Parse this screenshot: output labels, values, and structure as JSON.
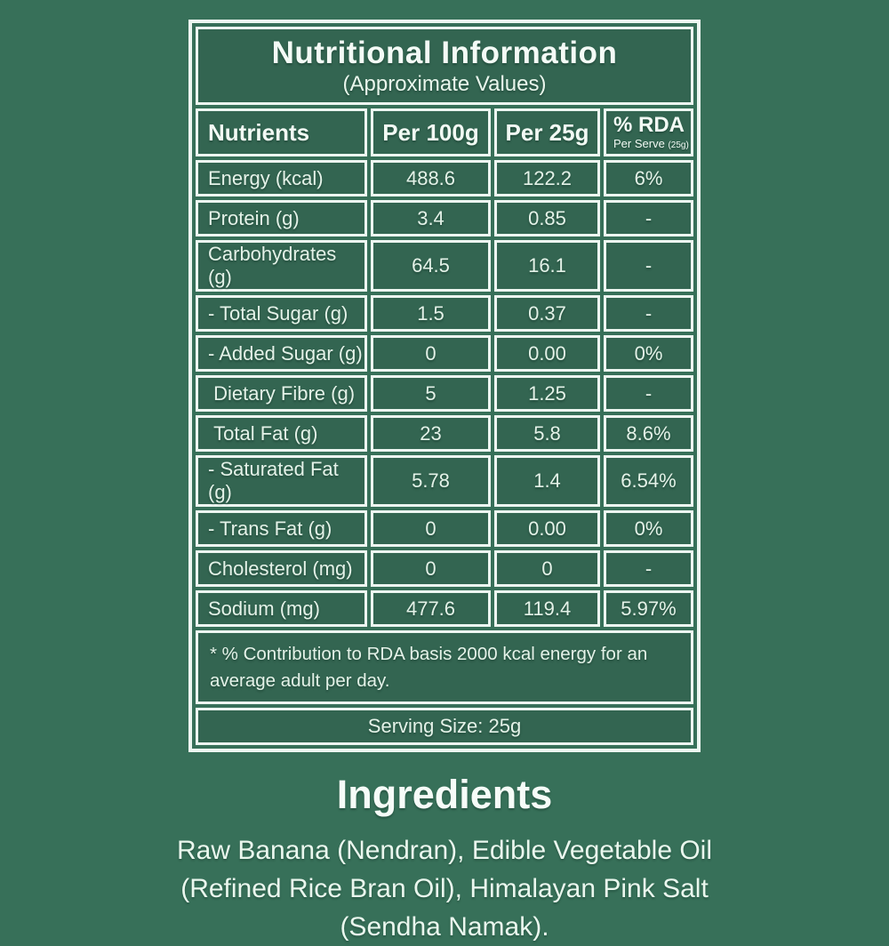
{
  "colors": {
    "background": "#377059",
    "cell_fill": "#336551",
    "border": "#EDF7F1",
    "text": "#E4F2E8"
  },
  "table": {
    "title": "Nutritional Information",
    "subtitle": "(Approximate Values)",
    "header": {
      "nutrients": "Nutrients",
      "per100g": "Per 100g",
      "per25g": "Per 25g",
      "rda_main": "% RDA",
      "rda_sub": "Per Serve",
      "rda_sub_note": "(25g)"
    },
    "rows": [
      {
        "nutrient": "Energy (kcal)",
        "per100g": "488.6",
        "per25g": "122.2",
        "rda": "6%"
      },
      {
        "nutrient": "Protein (g)",
        "per100g": "3.4",
        "per25g": "0.85",
        "rda": "-"
      },
      {
        "nutrient": "Carbohydrates (g)",
        "per100g": "64.5",
        "per25g": "16.1",
        "rda": "-"
      },
      {
        "nutrient": "- Total Sugar (g)",
        "per100g": "1.5",
        "per25g": "0.37",
        "rda": "-"
      },
      {
        "nutrient": "- Added Sugar (g)",
        "per100g": "0",
        "per25g": "0.00",
        "rda": "0%"
      },
      {
        "nutrient": " Dietary Fibre (g)",
        "per100g": "5",
        "per25g": "1.25",
        "rda": "-"
      },
      {
        "nutrient": " Total Fat (g)",
        "per100g": "23",
        "per25g": "5.8",
        "rda": "8.6%"
      },
      {
        "nutrient": "- Saturated Fat (g)",
        "per100g": "5.78",
        "per25g": "1.4",
        "rda": "6.54%"
      },
      {
        "nutrient": "- Trans Fat (g)",
        "per100g": "0",
        "per25g": "0.00",
        "rda": "0%"
      },
      {
        "nutrient": "Cholesterol (mg)",
        "per100g": "0",
        "per25g": "0",
        "rda": "-"
      },
      {
        "nutrient": "Sodium (mg)",
        "per100g": "477.6",
        "per25g": "119.4",
        "rda": "5.97%"
      }
    ],
    "footnote": "* % Contribution to RDA basis 2000 kcal energy for an average adult per day.",
    "serving_size": "Serving Size: 25g"
  },
  "ingredients": {
    "title": "Ingredients",
    "text": "Raw Banana (Nendran), Edible Vegetable Oil (Refined Rice Bran Oil), Himalayan Pink Salt (Sendha Namak)."
  }
}
